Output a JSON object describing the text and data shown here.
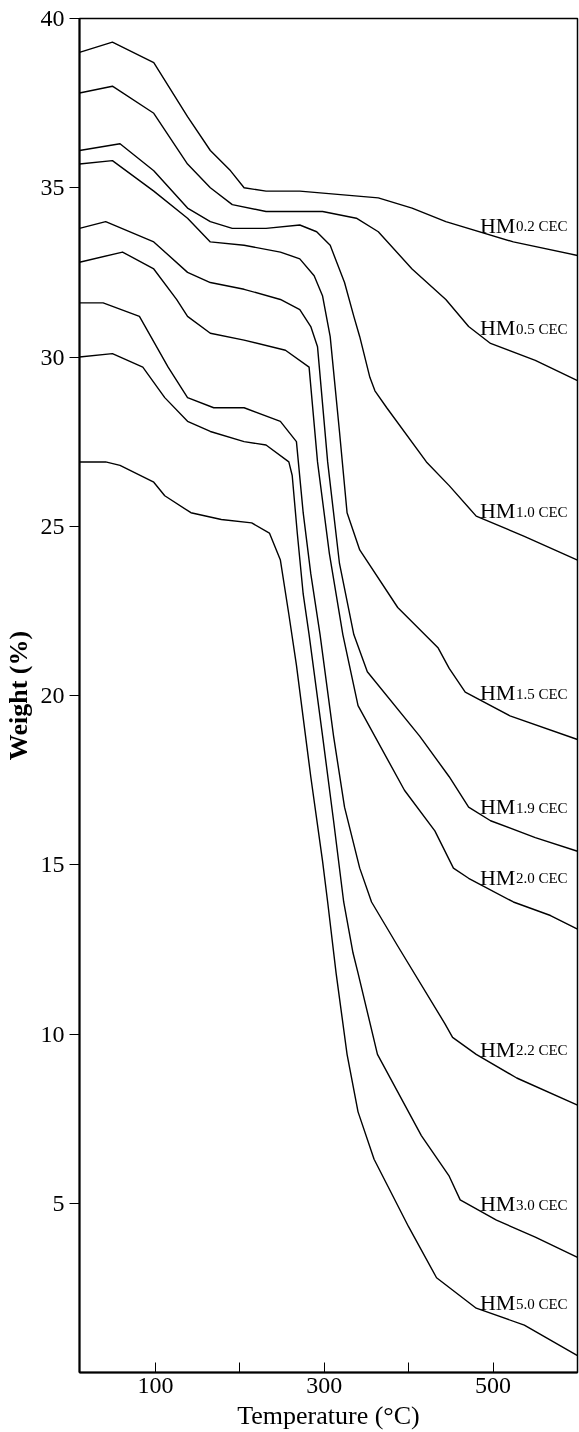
{
  "chart_data": {
    "type": "line",
    "xlabel": "Temperature (°C)",
    "ylabel": "Weight (%)",
    "xlim": [
      10,
      600
    ],
    "ylim": [
      0,
      40
    ],
    "xticks": [
      100,
      {
        "value": 200,
        "label": null
      },
      300,
      {
        "value": 400,
        "label": null
      },
      500
    ],
    "yticks": [
      5,
      10,
      15,
      20,
      25,
      30,
      35,
      40
    ],
    "series": [
      {
        "name": "HM$_{0.2 CEC}$",
        "color": "#000000",
        "x": [
          10,
          49,
          98,
          138,
          165,
          189,
          205,
          231,
          271,
          364,
          404,
          444,
          524,
          600
        ],
        "values": [
          39.0,
          39.3,
          38.7,
          37.1,
          36.1,
          35.5,
          35.0,
          34.9,
          34.9,
          34.7,
          34.4,
          34.0,
          33.4,
          33.0
        ]
      },
      {
        "name": "HM$_{0.5 CEC}$",
        "color": "#000000",
        "x": [
          10,
          49,
          98,
          138,
          165,
          191,
          231,
          298,
          338,
          364,
          404,
          444,
          471,
          497,
          550,
          600
        ],
        "values": [
          37.8,
          38.0,
          37.2,
          35.7,
          35.0,
          34.5,
          34.3,
          34.3,
          34.1,
          33.7,
          32.6,
          31.7,
          30.9,
          30.4,
          29.9,
          29.3
        ]
      },
      {
        "name": "HM$_{1.0 CEC}$",
        "color": "#000000",
        "x": [
          10,
          58,
          98,
          138,
          165,
          191,
          231,
          271,
          291,
          307,
          324,
          335,
          342,
          354,
          360,
          374,
          421,
          448,
          480,
          537,
          600
        ],
        "values": [
          36.1,
          36.3,
          35.5,
          34.4,
          34.0,
          33.8,
          33.8,
          33.9,
          33.7,
          33.3,
          32.2,
          31.2,
          30.6,
          29.4,
          29.0,
          28.5,
          26.9,
          26.2,
          25.3,
          24.7,
          24.0
        ]
      },
      {
        "name": "HM$_{1.5 CEC}$",
        "color": "#000000",
        "x": [
          10,
          49,
          98,
          138,
          165,
          205,
          248,
          271,
          288,
          298,
          307,
          318,
          327,
          342,
          387,
          435,
          448,
          467,
          520,
          600
        ],
        "values": [
          35.7,
          35.8,
          34.9,
          34.1,
          33.4,
          33.3,
          33.1,
          32.9,
          32.4,
          31.8,
          30.6,
          27.8,
          25.4,
          24.3,
          22.6,
          21.4,
          20.8,
          20.1,
          19.4,
          18.7
        ]
      },
      {
        "name": "HM$_{1.9 CEC}$",
        "color": "#000000",
        "x": [
          10,
          41,
          98,
          138,
          165,
          205,
          248,
          271,
          284,
          292,
          304,
          318,
          335,
          351,
          413,
          448,
          471,
          497,
          550,
          600
        ],
        "values": [
          33.8,
          34.0,
          33.4,
          32.5,
          32.2,
          32.0,
          31.7,
          31.4,
          30.9,
          30.3,
          26.9,
          23.9,
          21.8,
          20.7,
          18.8,
          17.6,
          16.7,
          16.3,
          15.8,
          15.4
        ]
      },
      {
        "name": "HM$_{2.0 CEC}$",
        "color": "#000000",
        "x": [
          10,
          61,
          98,
          125,
          138,
          165,
          205,
          254,
          282,
          292,
          306,
          322,
          340,
          395,
          431,
          453,
          471,
          524,
          568,
          600
        ],
        "values": [
          32.8,
          33.1,
          32.6,
          31.7,
          31.2,
          30.7,
          30.5,
          30.2,
          29.7,
          26.9,
          24.2,
          21.8,
          19.7,
          17.2,
          16.0,
          14.9,
          14.6,
          13.9,
          13.5,
          13.1
        ]
      },
      {
        "name": "HM$_{2.2 CEC}$",
        "color": "#000000",
        "x": [
          10,
          38,
          81,
          115,
          138,
          169,
          205,
          248,
          267,
          275,
          284,
          295,
          311,
          324,
          342,
          356,
          387,
          443,
          452,
          480,
          528,
          600
        ],
        "values": [
          31.6,
          31.6,
          31.2,
          29.7,
          28.8,
          28.5,
          28.5,
          28.1,
          27.5,
          25.4,
          23.6,
          21.8,
          18.8,
          16.7,
          14.9,
          13.9,
          12.6,
          10.3,
          9.9,
          9.4,
          8.7,
          7.9
        ]
      },
      {
        "name": "HM$_{3.0 CEC}$",
        "color": "#000000",
        "x": [
          10,
          49,
          85,
          111,
          138,
          165,
          205,
          231,
          258,
          262,
          268,
          275,
          282,
          298,
          311,
          323,
          334,
          340,
          363,
          415,
          448,
          461,
          504,
          550,
          600
        ],
        "values": [
          30.0,
          30.1,
          29.7,
          28.8,
          28.1,
          27.8,
          27.5,
          27.4,
          26.9,
          26.5,
          24.8,
          23.0,
          21.8,
          18.8,
          16.3,
          13.9,
          12.4,
          11.8,
          9.4,
          7.0,
          5.8,
          5.1,
          4.5,
          4.0,
          3.4
        ]
      },
      {
        "name": "HM$_{5.0 CEC}$",
        "color": "#000000",
        "x": [
          10,
          41,
          58,
          98,
          111,
          142,
          178,
          214,
          235,
          248,
          258,
          267,
          284,
          298,
          304,
          314,
          327,
          340,
          359,
          400,
          433,
          480,
          537,
          600
        ],
        "values": [
          26.9,
          26.9,
          26.8,
          26.3,
          25.9,
          25.4,
          25.2,
          25.1,
          24.8,
          24.0,
          22.4,
          20.9,
          17.6,
          15.1,
          13.9,
          11.8,
          9.4,
          7.7,
          6.3,
          4.3,
          2.8,
          1.9,
          1.4,
          0.5
        ]
      }
    ]
  }
}
